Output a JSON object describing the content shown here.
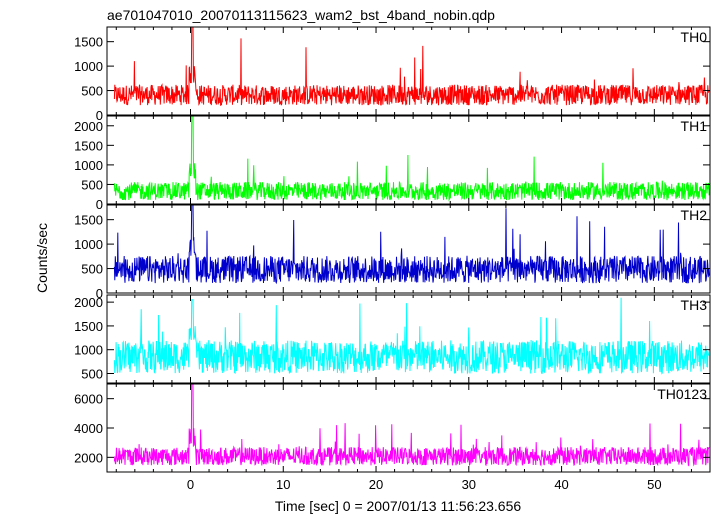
{
  "title": "ae701047010_20070113115623_wam2_bst_4band_nobin.qdp",
  "chart_data": {
    "type": "line",
    "title": "ae701047010_20070113115623_wam2_bst_4band_nobin.qdp",
    "xlabel": "Time [sec] 0 = 2007/01/13 11:56:23.656",
    "ylabel": "Counts/sec",
    "xlim": [
      -9,
      56
    ],
    "x_ticks": [
      0,
      10,
      20,
      30,
      40,
      50
    ],
    "grid": false,
    "legend": "none",
    "series": [
      {
        "name": "TH0",
        "color": "#ff0000",
        "ylim": [
          0,
          1800
        ],
        "y_ticks": [
          0,
          500,
          1000,
          1500
        ],
        "baseline_low": 200,
        "baseline_high": 620,
        "spike_max": 1600,
        "peak": 1800,
        "peak_time": 0.2
      },
      {
        "name": "TH1",
        "color": "#00ff00",
        "ylim": [
          0,
          2250
        ],
        "y_ticks": [
          0,
          500,
          1000,
          1500,
          2000
        ],
        "baseline_low": 100,
        "baseline_high": 560,
        "spike_max": 1300,
        "peak": 2250,
        "peak_time": 0.2
      },
      {
        "name": "TH2",
        "color": "#0000cc",
        "ylim": [
          0,
          1800
        ],
        "y_ticks": [
          0,
          500,
          1000,
          1500
        ],
        "baseline_low": 200,
        "baseline_high": 760,
        "spike_max": 1750,
        "peak": 1800,
        "peak_time": 0.2
      },
      {
        "name": "TH3",
        "color": "#00ffff",
        "ylim": [
          300,
          2150
        ],
        "y_ticks": [
          500,
          1000,
          1500,
          2000
        ],
        "baseline_low": 500,
        "baseline_high": 1200,
        "spike_max": 2100,
        "peak": 2050,
        "peak_time": 0.2
      },
      {
        "name": "TH0123",
        "color": "#ff00ff",
        "ylim": [
          1000,
          7000
        ],
        "y_ticks": [
          2000,
          4000,
          6000
        ],
        "baseline_low": 1450,
        "baseline_high": 2700,
        "spike_max": 4400,
        "peak": 7000,
        "peak_time": 0.2
      }
    ]
  }
}
